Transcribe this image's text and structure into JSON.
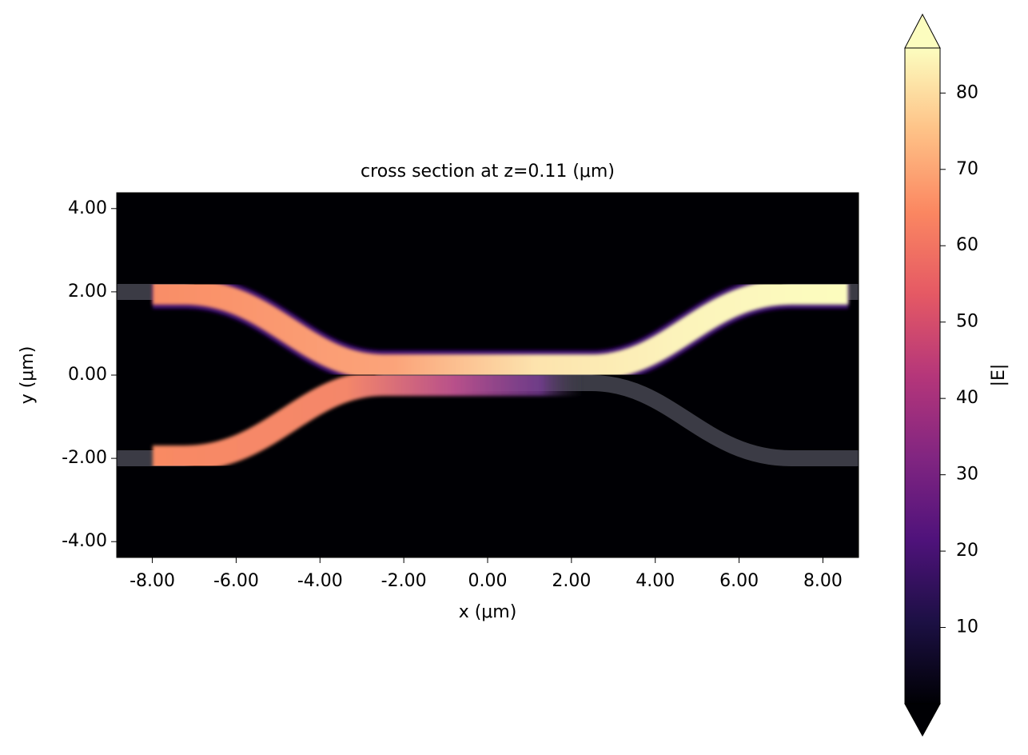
{
  "chart_data": {
    "type": "heatmap",
    "title": "cross section at z=0.11 (μm)",
    "xlabel": "x (μm)",
    "ylabel": "y (μm)",
    "xlim": [
      -8.85,
      8.85
    ],
    "ylim": [
      -4.38,
      4.38
    ],
    "xticks": [
      {
        "value": -8,
        "label": "-8.00"
      },
      {
        "value": -6,
        "label": "-6.00"
      },
      {
        "value": -4,
        "label": "-4.00"
      },
      {
        "value": -2,
        "label": "-2.00"
      },
      {
        "value": 0,
        "label": "0.00"
      },
      {
        "value": 2,
        "label": "2.00"
      },
      {
        "value": 4,
        "label": "4.00"
      },
      {
        "value": 6,
        "label": "6.00"
      },
      {
        "value": 8,
        "label": "8.00"
      }
    ],
    "yticks": [
      {
        "value": -4,
        "label": "-4.00"
      },
      {
        "value": -2,
        "label": "-2.00"
      },
      {
        "value": 0,
        "label": "0.00"
      },
      {
        "value": 2,
        "label": "2.00"
      },
      {
        "value": 4,
        "label": "4.00"
      }
    ],
    "colorbar": {
      "label": "|E|",
      "colormap": "magma",
      "lim": [
        0,
        85.9
      ],
      "ticks": [
        10,
        20,
        30,
        40,
        50,
        60,
        70,
        80
      ]
    }
  }
}
